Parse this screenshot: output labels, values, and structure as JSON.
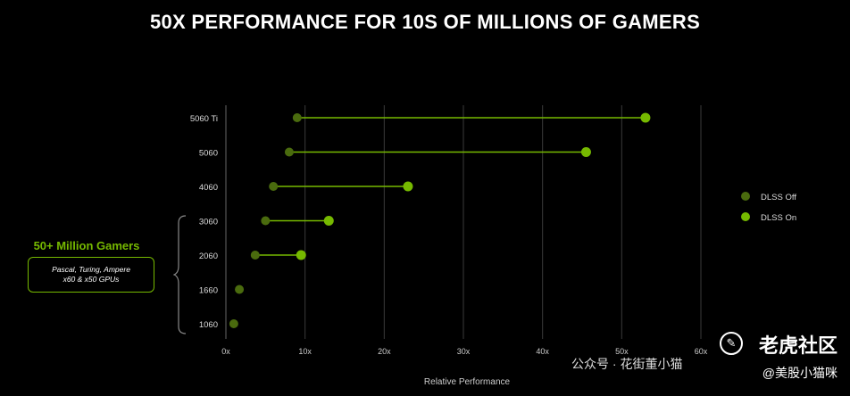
{
  "title": "50X PERFORMANCE FOR 10S OF MILLIONS OF GAMERS",
  "callout": {
    "heading": "50+ Million Gamers",
    "line1": "Pascal, Turing, Ampere",
    "line2": "x60 & x50 GPUs"
  },
  "watermark": {
    "brand": "老虎社区",
    "account": "@美股小猫咪",
    "channel": "公众号 · 花街董小猫",
    "logo_glyph": "✎"
  },
  "colors": {
    "dlss_off": "#4a6b0e",
    "dlss_on": "#76b900",
    "connector": "#76b900",
    "grid": "#3a3a3a"
  },
  "chart_data": {
    "type": "dumbbell",
    "xlabel": "Relative Performance",
    "xlim": [
      0,
      60
    ],
    "xticks": [
      0,
      10,
      20,
      30,
      40,
      50,
      60
    ],
    "xtick_labels": [
      "0x",
      "10x",
      "20x",
      "30x",
      "40x",
      "50x",
      "60x"
    ],
    "legend_position": "right",
    "series": [
      {
        "name": "DLSS Off",
        "values": [
          9,
          8,
          6,
          5,
          3.7,
          1.7,
          1
        ]
      },
      {
        "name": "DLSS On",
        "values": [
          53,
          45.5,
          23,
          13,
          9.5,
          null,
          null
        ]
      }
    ],
    "categories": [
      "5060 Ti",
      "5060",
      "4060",
      "3060",
      "2060",
      "1660",
      "1060"
    ]
  }
}
